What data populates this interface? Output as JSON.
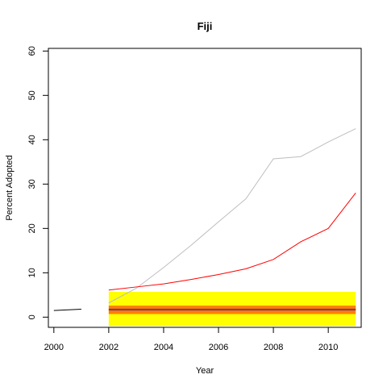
{
  "chart_data": {
    "type": "line",
    "title": "Fiji",
    "xlabel": "Year",
    "ylabel": "Percent Adopted",
    "xlim": [
      1999.8,
      2011.2
    ],
    "ylim": [
      -2.3,
      60.6
    ],
    "x_ticks": [
      "2000",
      "2002",
      "2004",
      "2006",
      "2008",
      "2010"
    ],
    "y_ticks": [
      "0",
      "10",
      "20",
      "30",
      "40",
      "50",
      "60"
    ],
    "grid": false,
    "legend": "none",
    "bands": [
      {
        "x": [
          2002,
          2011
        ],
        "y": [
          -2.0,
          5.7
        ],
        "color": "#ffff00"
      },
      {
        "x": [
          2002,
          2011
        ],
        "y": [
          0.7,
          2.6
        ],
        "color": "#ff7f00"
      }
    ],
    "series": [
      {
        "color": "#000000",
        "x": [
          2000,
          2001
        ],
        "y": [
          1.5,
          1.8
        ]
      },
      {
        "color": "#bebebe",
        "x": [
          2002,
          2003,
          2004,
          2005,
          2006,
          2007,
          2008,
          2009,
          2010,
          2011
        ],
        "y": [
          3.2,
          6.5,
          11.2,
          16.2,
          21.5,
          26.7,
          35.7,
          36.2,
          39.5,
          42.5
        ]
      },
      {
        "color": "#ff0000",
        "x": [
          2002,
          2003,
          2004,
          2005,
          2006,
          2007,
          2008,
          2009,
          2010,
          2011
        ],
        "y": [
          6.1,
          6.8,
          7.5,
          8.5,
          9.6,
          10.9,
          13.0,
          17.0,
          20.0,
          28.0
        ]
      },
      {
        "color": "#7d3c6e",
        "x": [
          2002,
          2011
        ],
        "y": [
          1.7,
          1.7
        ]
      }
    ]
  }
}
